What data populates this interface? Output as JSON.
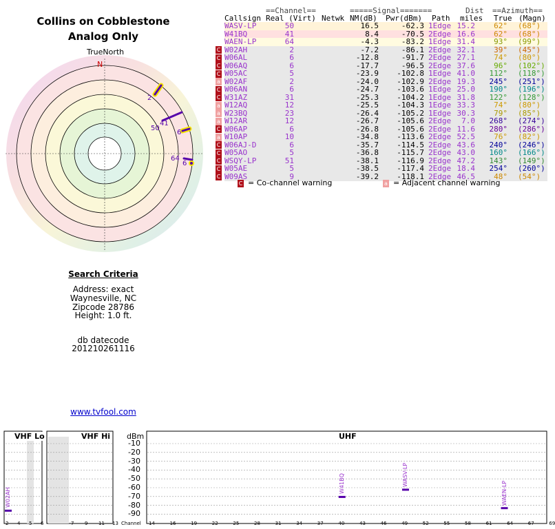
{
  "header": {
    "title_line1": "Collins on Cobblestone",
    "title_line2": "Analog Only"
  },
  "compass": {
    "true_north_label": "TrueNorth",
    "north_letter": "N",
    "marker_labels": [
      "2",
      "41",
      "50",
      "6",
      "64",
      "6"
    ]
  },
  "table": {
    "group_headers": {
      "channel": "==Channel==",
      "signal": "=====Signal=======",
      "dist": "Dist",
      "azimuth": "==Azimuth=="
    },
    "columns": {
      "callsign": "Callsign",
      "real_virt": "Real (Virt)",
      "netwk": "Netwk",
      "nm": "NM(dB)",
      "pwr": "Pwr(dBm)",
      "path": "Path",
      "miles": "miles",
      "true": "True",
      "magn": "(Magn)"
    },
    "rows": [
      {
        "warn": "",
        "callsign": "WASV-LP",
        "real": "50",
        "nm": "16.5",
        "pwr": "-62.3",
        "path": "1Edge",
        "miles": "15.2",
        "true": "62°",
        "magn": "(68°)",
        "bg": "#fff3d8",
        "color": "#9933cc",
        "azcolor": "#cc8800"
      },
      {
        "warn": "",
        "callsign": "W41BQ",
        "real": "41",
        "nm": "8.4",
        "pwr": "-70.5",
        "path": "2Edge",
        "miles": "16.6",
        "true": "62°",
        "magn": "(68°)",
        "bg": "#ffe0e0",
        "color": "#9933cc",
        "azcolor": "#cc8800"
      },
      {
        "warn": "",
        "callsign": "WAEN-LP",
        "real": "64",
        "nm": "-4.3",
        "pwr": "-83.2",
        "path": "1Edge",
        "miles": "31.4",
        "true": "93°",
        "magn": "(99°)",
        "bg": "#fffbe0",
        "color": "#9933cc",
        "azcolor": "#889900"
      },
      {
        "warn": "co",
        "callsign": "W02AH",
        "real": "2",
        "nm": "-7.2",
        "pwr": "-86.1",
        "path": "2Edge",
        "miles": "32.1",
        "true": "39°",
        "magn": "(45°)",
        "bg": "#e8e8e8",
        "color": "#9933cc",
        "azcolor": "#cc6600"
      },
      {
        "warn": "co",
        "callsign": "W06AL",
        "real": "6",
        "nm": "-12.8",
        "pwr": "-91.7",
        "path": "2Edge",
        "miles": "27.1",
        "true": "74°",
        "magn": "(80°)",
        "bg": "#e8e8e8",
        "color": "#9933cc",
        "azcolor": "#cc9900"
      },
      {
        "warn": "co",
        "callsign": "W06AQ",
        "real": "6",
        "nm": "-17.7",
        "pwr": "-96.5",
        "path": "2Edge",
        "miles": "37.6",
        "true": "96°",
        "magn": "(102°)",
        "bg": "#e8e8e8",
        "color": "#9933cc",
        "azcolor": "#66aa00"
      },
      {
        "warn": "co",
        "callsign": "W05AC",
        "real": "5",
        "nm": "-23.9",
        "pwr": "-102.8",
        "path": "1Edge",
        "miles": "41.0",
        "true": "112°",
        "magn": "(118°)",
        "bg": "#e8e8e8",
        "color": "#9933cc",
        "azcolor": "#339933"
      },
      {
        "warn": "adj",
        "callsign": "W02AF",
        "real": "2",
        "nm": "-24.0",
        "pwr": "-102.9",
        "path": "2Edge",
        "miles": "19.3",
        "true": "245°",
        "magn": "(251°)",
        "bg": "#e8e8e8",
        "color": "#9933cc",
        "azcolor": "#000099"
      },
      {
        "warn": "co",
        "callsign": "W06AN",
        "real": "6",
        "nm": "-24.7",
        "pwr": "-103.6",
        "path": "1Edge",
        "miles": "25.0",
        "true": "190°",
        "magn": "(196°)",
        "bg": "#e8e8e8",
        "color": "#9933cc",
        "azcolor": "#008888"
      },
      {
        "warn": "co",
        "callsign": "W31AZ",
        "real": "31",
        "nm": "-25.3",
        "pwr": "-104.2",
        "path": "1Edge",
        "miles": "31.8",
        "true": "122°",
        "magn": "(128°)",
        "bg": "#e8e8e8",
        "color": "#9933cc",
        "azcolor": "#339933"
      },
      {
        "warn": "adj",
        "callsign": "W12AQ",
        "real": "12",
        "nm": "-25.5",
        "pwr": "-104.3",
        "path": "1Edge",
        "miles": "33.3",
        "true": "74°",
        "magn": "(80°)",
        "bg": "#e8e8e8",
        "color": "#9933cc",
        "azcolor": "#cc9900"
      },
      {
        "warn": "adj",
        "callsign": "W23BQ",
        "real": "23",
        "nm": "-26.4",
        "pwr": "-105.2",
        "path": "1Edge",
        "miles": "30.3",
        "true": "79°",
        "magn": "(85°)",
        "bg": "#e8e8e8",
        "color": "#9933cc",
        "azcolor": "#aa9900"
      },
      {
        "warn": "adj",
        "callsign": "W12AR",
        "real": "12",
        "nm": "-26.7",
        "pwr": "-105.6",
        "path": "2Edge",
        "miles": "7.0",
        "true": "268°",
        "magn": "(274°)",
        "bg": "#e8e8e8",
        "color": "#9933cc",
        "azcolor": "#330099"
      },
      {
        "warn": "co",
        "callsign": "W06AP",
        "real": "6",
        "nm": "-26.8",
        "pwr": "-105.6",
        "path": "2Edge",
        "miles": "11.6",
        "true": "280°",
        "magn": "(286°)",
        "bg": "#e8e8e8",
        "color": "#9933cc",
        "azcolor": "#660099"
      },
      {
        "warn": "adj",
        "callsign": "W10AP",
        "real": "10",
        "nm": "-34.8",
        "pwr": "-113.6",
        "path": "2Edge",
        "miles": "52.5",
        "true": "76°",
        "magn": "(82°)",
        "bg": "#e8e8e8",
        "color": "#9933cc",
        "azcolor": "#cc9900"
      },
      {
        "warn": "co",
        "callsign": "W06AJ-D",
        "real": "6",
        "nm": "-35.7",
        "pwr": "-114.5",
        "path": "2Edge",
        "miles": "43.6",
        "true": "240°",
        "magn": "(246°)",
        "bg": "#e8e8e8",
        "color": "#9933cc",
        "azcolor": "#000099"
      },
      {
        "warn": "co",
        "callsign": "W05AO",
        "real": "5",
        "nm": "-36.8",
        "pwr": "-115.7",
        "path": "2Edge",
        "miles": "43.0",
        "true": "160°",
        "magn": "(166°)",
        "bg": "#e8e8e8",
        "color": "#9933cc",
        "azcolor": "#008888"
      },
      {
        "warn": "co",
        "callsign": "WSQY-LP",
        "real": "51",
        "nm": "-38.1",
        "pwr": "-116.9",
        "path": "2Edge",
        "miles": "47.2",
        "true": "143°",
        "magn": "(149°)",
        "bg": "#e8e8e8",
        "color": "#9933cc",
        "azcolor": "#338833"
      },
      {
        "warn": "co",
        "callsign": "W05AE",
        "real": "5",
        "nm": "-38.5",
        "pwr": "-117.4",
        "path": "2Edge",
        "miles": "18.4",
        "true": "254°",
        "magn": "(260°)",
        "bg": "#e8e8e8",
        "color": "#9933cc",
        "azcolor": "#000099"
      },
      {
        "warn": "co",
        "callsign": "W09AS",
        "real": "9",
        "nm": "-39.2",
        "pwr": "-118.1",
        "path": "2Edge",
        "miles": "46.5",
        "true": "48°",
        "magn": "(54°)",
        "bg": "#e8e8e8",
        "color": "#9933cc",
        "azcolor": "#cc8800"
      }
    ],
    "warn_glyph": "C",
    "adj_glyph": "a",
    "legend_co": "= Co-channel warning",
    "legend_adj": "= Adjacent channel warning"
  },
  "search": {
    "heading": "Search Criteria",
    "address": "Address: exact",
    "city": "Waynesville, NC",
    "zipcode": "Zipcode 28786",
    "height": "Height: 1.0 ft.",
    "db_label": "db datecode",
    "db_value": "201210261116",
    "link": "www.tvfool.com"
  },
  "spectrum": {
    "vhf_lo": "VHF Lo",
    "vhf_hi": "VHF Hi",
    "uhf": "UHF",
    "dbm_label": "dBm",
    "dbm_ticks": [
      "-10",
      "-20",
      "-30",
      "-40",
      "-50",
      "-60",
      "-70",
      "-80",
      "-90"
    ],
    "channel_word": "Channel",
    "lo_channels": [
      "2",
      "4",
      "5",
      "6"
    ],
    "hi_channels": [
      "7",
      "9",
      "11",
      "13"
    ],
    "uhf_channels": [
      "14",
      "16",
      "19",
      "22",
      "25",
      "28",
      "31",
      "34",
      "37",
      "40",
      "43",
      "46",
      "49",
      "52",
      "55",
      "58",
      "61",
      "64",
      "67",
      "69"
    ],
    "stations": [
      {
        "label": "W02AH",
        "channel": 2,
        "dbm": -86.1
      },
      {
        "label": "W41BQ",
        "channel": 41,
        "dbm": -70.5
      },
      {
        "label": "WASV-LP",
        "channel": 50,
        "dbm": -62.3
      },
      {
        "label": "WAEN-LP",
        "channel": 64,
        "dbm": -83.2
      }
    ]
  }
}
